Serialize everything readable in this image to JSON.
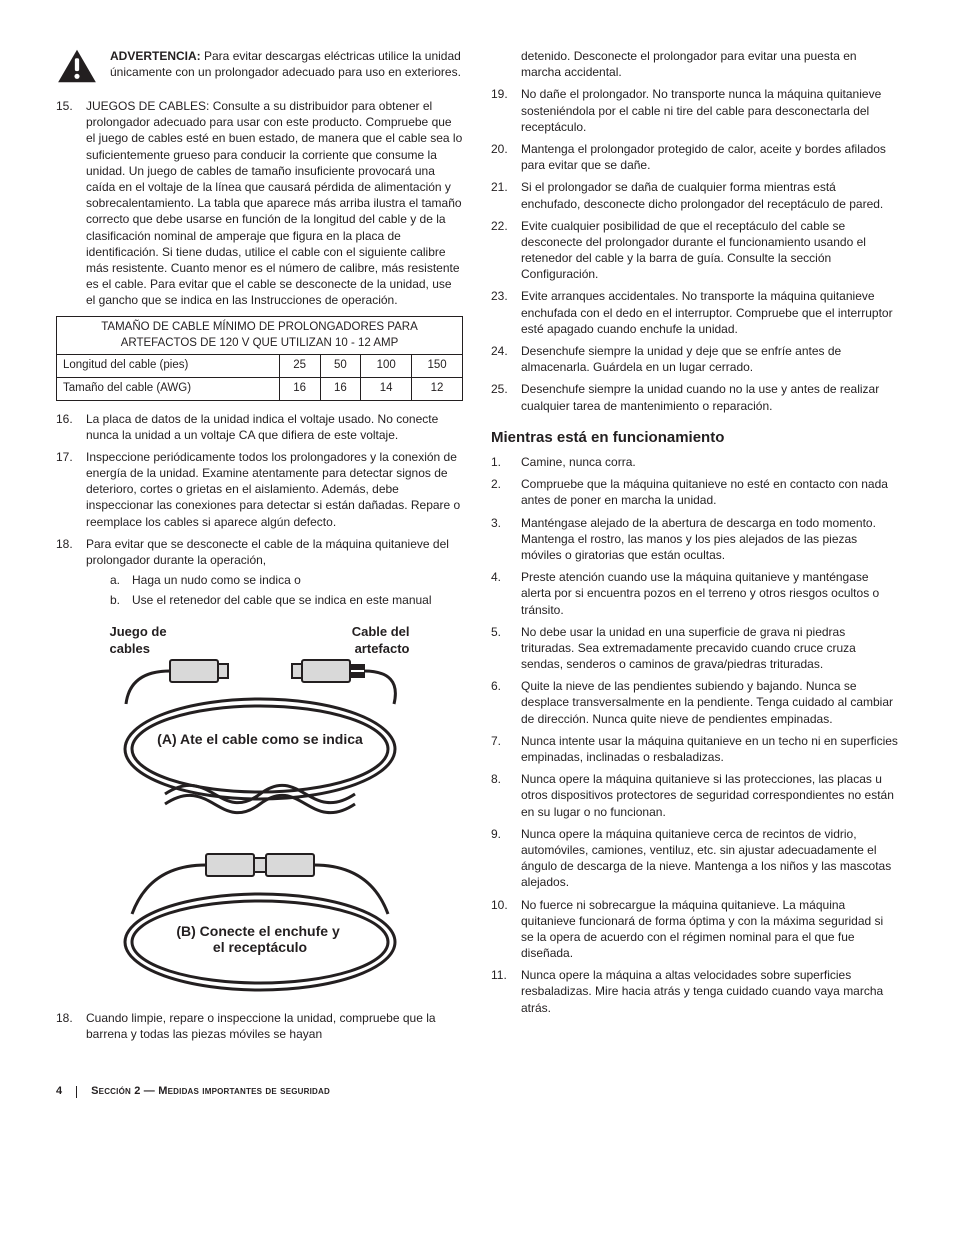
{
  "warning": {
    "label": "ADVERTENCIA:",
    "text": " Para evitar descargas eléctricas utilice la unidad únicamente con un prolongador adecuado para uso en exteriores."
  },
  "leftListA": [
    {
      "n": "15.",
      "t": "JUEGOS DE CABLES: Consulte a su distribuidor para obtener el prolongador adecuado para usar con este producto. Compruebe que el juego de cables esté en buen estado, de manera que el cable sea lo suficientemente grueso para conducir la corriente que consume la unidad. Un juego de cables de tamaño insuficiente provocará una caída en el voltaje de la línea que causará pérdida de alimentación y sobrecalentamiento. La tabla que aparece más arriba ilustra el tamaño correcto que debe usarse en función de la longitud del cable y de la clasificación nominal de amperaje que figura en la placa de identificación. Si tiene dudas, utilice el cable con el siguiente calibre más resistente. Cuanto menor es el número de calibre, más resistente es el cable. Para evitar que el cable se desconecte de la unidad, use el gancho que se indica en las Instrucciones de operación."
    }
  ],
  "table": {
    "title1": "TAMAÑO DE CABLE MÍNIMO DE PROLONGADORES PARA",
    "title2": "ARTEFACTOS DE 120 V QUE UTILIZAN 10 - 12 AMP",
    "r1_lbl": "Longitud del cable (pies)",
    "r1": [
      "25",
      "50",
      "100",
      "150"
    ],
    "r2_lbl": "Tamaño del cable (AWG)",
    "r2": [
      "16",
      "16",
      "14",
      "12"
    ]
  },
  "leftListB": [
    {
      "n": "16.",
      "t": "La placa de datos de la unidad indica el voltaje usado. No conecte nunca la unidad a un voltaje CA que difiera de este voltaje."
    },
    {
      "n": "17.",
      "t": "Inspeccione periódicamente todos los prolongadores y la conexión de energía de la unidad. Examine atentamente para detectar signos de deterioro, cortes o grietas en el aislamiento. Además, debe inspeccionar las conexiones para detectar si están dañadas. Repare o reemplace los cables si aparece algún defecto."
    },
    {
      "n": "18.",
      "t": "Para evitar que se desconecte el cable de la máquina quitanieve del prolongador durante la operación,",
      "sub": [
        {
          "l": "a.",
          "t": "Haga un nudo como se indica o"
        },
        {
          "l": "b.",
          "t": "Use el retenedor del cable que se indica en este manual"
        }
      ]
    }
  ],
  "figure": {
    "left_label_1": "Juego de",
    "left_label_2": "cables",
    "right_label_1": "Cable del",
    "right_label_2": "artefacto",
    "caption_a": "(A) Ate el cable como se indica",
    "caption_b1": "(B) Conecte el enchufe y",
    "caption_b2": "el receptáculo"
  },
  "leftListC": [
    {
      "n": "18.",
      "t": "Cuando limpie, repare o inspeccione la unidad, compruebe que la barrena y todas las piezas móviles se hayan"
    }
  ],
  "rightListA": [
    {
      "n": "",
      "t": "detenido. Desconecte el prolongador para evitar una puesta en marcha accidental."
    },
    {
      "n": "19.",
      "t": "No dañe el prolongador. No transporte nunca la máquina quitanieve sosteniéndola por el cable ni tire del cable para desconectarla del receptáculo."
    },
    {
      "n": "20.",
      "t": "Mantenga el prolongador protegido de calor, aceite y bordes afilados para evitar que se dañe."
    },
    {
      "n": "21.",
      "t": "Si el prolongador se daña de cualquier forma mientras está enchufado, desconecte dicho prolongador del receptáculo de pared."
    },
    {
      "n": "22.",
      "t": "Evite cualquier posibilidad de que el receptáculo del cable se desconecte del prolongador durante el funcionamiento usando el retenedor del cable y la barra de guía. Consulte la sección Configuración."
    },
    {
      "n": "23.",
      "t": "Evite arranques accidentales. No transporte la máquina quitanieve enchufada con el dedo en el interruptor. Compruebe que el interruptor esté apagado cuando enchufe la unidad."
    },
    {
      "n": "24.",
      "t": "Desenchufe siempre la unidad y deje que se enfríe antes de almacenarla. Guárdela en un lugar cerrado."
    },
    {
      "n": "25.",
      "t": "Desenchufe siempre la unidad cuando no la use y antes de realizar cualquier tarea de mantenimiento o reparación."
    }
  ],
  "subhead": "Mientras está en funcionamiento",
  "rightListB": [
    {
      "n": "1.",
      "t": "Camine, nunca corra."
    },
    {
      "n": "2.",
      "t": "Compruebe que la máquina quitanieve no esté en contacto con nada antes de poner en marcha la unidad."
    },
    {
      "n": "3.",
      "t": "Manténgase alejado de la abertura de descarga en todo momento. Mantenga el rostro, las manos y los pies alejados de las piezas móviles o giratorias que están ocultas."
    },
    {
      "n": "4.",
      "t": "Preste atención cuando use la máquina quitanieve y manténgase alerta por si encuentra pozos en el terreno y otros riesgos ocultos o tránsito."
    },
    {
      "n": "5.",
      "t": "No debe usar la unidad en una superficie de grava ni piedras trituradas. Sea extremadamente precavido cuando cruce cruza sendas, senderos o caminos de grava/piedras trituradas."
    },
    {
      "n": "6.",
      "t": "Quite la nieve de las pendientes subiendo y bajando. Nunca se desplace transversalmente en la pendiente. Tenga cuidado al cambiar de dirección. Nunca quite nieve de pendientes empinadas."
    },
    {
      "n": "7.",
      "t": "Nunca intente usar la máquina quitanieve en un techo ni en superficies empinadas, inclinadas o resbaladizas."
    },
    {
      "n": "8.",
      "t": "Nunca opere la máquina quitanieve si las protecciones, las placas u otros dispositivos protectores de seguridad correspondientes no están en su lugar o no funcionan."
    },
    {
      "n": "9.",
      "t": "Nunca opere la máquina quitanieve cerca de recintos de vidrio, automóviles, camiones, ventiluz, etc. sin ajustar adecuadamente el ángulo de descarga de la nieve. Mantenga a los niños y las mascotas alejados."
    },
    {
      "n": "10.",
      "t": "No fuerce ni sobrecargue la máquina quitanieve. La máquina quitanieve funcionará de forma óptima y con la máxima seguridad si se la opera de acuerdo con el régimen nominal para el que fue diseñada."
    },
    {
      "n": "11.",
      "t": "Nunca opere la máquina a altas velocidades sobre superficies resbaladizas. Mire hacia atrás y tenga cuidado cuando vaya marcha atrás."
    }
  ],
  "footer": {
    "page": "4",
    "section_label": "Sección 2 — ",
    "section_title": "Medidas importantes de seguridad"
  }
}
